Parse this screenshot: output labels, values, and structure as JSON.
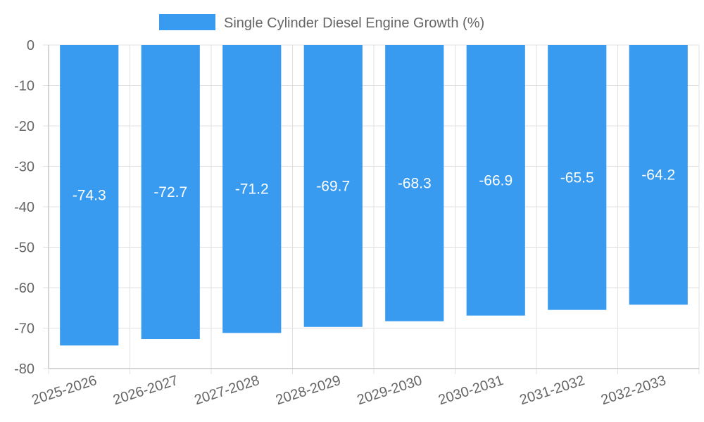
{
  "chart_data": {
    "type": "bar",
    "categories": [
      "2025-2026",
      "2026-2027",
      "2027-2028",
      "2028-2029",
      "2029-2030",
      "2030-2031",
      "2031-2032",
      "2032-2033"
    ],
    "series": [
      {
        "name": "Single Cylinder Diesel Engine Growth (%)",
        "values": [
          -74.3,
          -72.7,
          -71.2,
          -69.7,
          -68.3,
          -66.9,
          -65.5,
          -64.2
        ],
        "color": "#389bf0"
      }
    ],
    "ylim": [
      -80,
      0
    ],
    "yticks": [
      0,
      -10,
      -20,
      -30,
      -40,
      -50,
      -60,
      -70,
      -80
    ],
    "grid": true,
    "legend_position": "top-center",
    "data_labels": true,
    "title": "",
    "xlabel": "",
    "ylabel": ""
  }
}
